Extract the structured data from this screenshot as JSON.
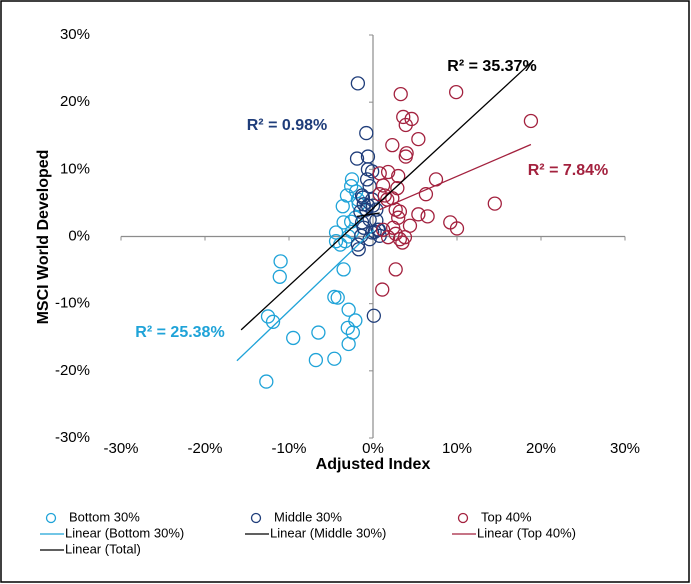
{
  "chart_data": {
    "type": "scatter",
    "x_label": "Adjusted Index",
    "y_label": "MSCI World Developed",
    "xlim": [
      -30,
      30
    ],
    "ylim": [
      -30,
      30
    ],
    "xticks": [
      {
        "value": -30,
        "label": "-30%"
      },
      {
        "value": -20,
        "label": "-20%"
      },
      {
        "value": -10,
        "label": "-10%"
      },
      {
        "value": 0,
        "label": "0%"
      },
      {
        "value": 10,
        "label": "10%"
      },
      {
        "value": 20,
        "label": "20%"
      },
      {
        "value": 30,
        "label": "30%"
      }
    ],
    "yticks": [
      {
        "value": -30,
        "label": "-30%"
      },
      {
        "value": -20,
        "label": "-20%"
      },
      {
        "value": -10,
        "label": "-10%"
      },
      {
        "value": 0,
        "label": "0%"
      },
      {
        "value": 10,
        "label": "10%"
      },
      {
        "value": 20,
        "label": "20%"
      },
      {
        "value": 30,
        "label": "30%"
      }
    ],
    "grid": false,
    "series": [
      {
        "name": "Bottom 30%",
        "color": "#1fa3d8",
        "mode": "markers",
        "x": [
          -12.7,
          -11.0,
          -11.1,
          -12.5,
          -11.9,
          -9.5,
          -6.8,
          -4.6,
          -6.5,
          -2.9,
          -2.4,
          -3.0,
          -2.1,
          -2.9,
          -4.2,
          -4.6,
          -3.5,
          -4.4,
          -4.4,
          -3.9,
          -3.3,
          -2.9,
          -2.5,
          -3.5,
          -3.6,
          -3.1,
          -2.6,
          -2.5,
          -2.0,
          -1.8,
          -1.7,
          -2.1,
          -2.6
        ],
        "values": [
          -21.6,
          -3.7,
          -6.0,
          -11.9,
          -12.7,
          -15.1,
          -18.4,
          -18.2,
          -14.3,
          -16.0,
          -14.3,
          -13.6,
          -12.5,
          -10.9,
          -9.1,
          -9.0,
          -4.9,
          0.6,
          -0.7,
          -1.2,
          -0.7,
          0.0,
          0.7,
          2.1,
          4.5,
          6.1,
          7.5,
          8.5,
          6.7,
          5.5,
          4.8,
          2.8,
          2.2
        ]
      },
      {
        "name": "Middle 30%",
        "color": "#1f3d7a",
        "mode": "markers",
        "x": [
          -1.8,
          -0.8,
          -1.9,
          -0.6,
          -0.6,
          -0.7,
          -0.1,
          -0.4,
          -0.1,
          -1.1,
          -0.8,
          -0.4,
          -1.5,
          -1.3,
          -1.1,
          -0.1,
          0.2,
          0.6,
          -1.8,
          -1.7,
          -0.6,
          0.0,
          -1.2,
          0.4,
          0.4,
          0.7,
          0.8,
          0.1,
          -0.4,
          -1.4,
          -1.3
        ],
        "values": [
          22.8,
          15.4,
          11.6,
          11.9,
          10.0,
          8.5,
          9.7,
          7.5,
          5.5,
          4.8,
          4.0,
          2.5,
          3.7,
          2.1,
          1.3,
          0.6,
          0.7,
          1.0,
          -1.2,
          -1.9,
          4.6,
          4.6,
          5.8,
          4.0,
          2.4,
          1.0,
          0.1,
          -11.8,
          -0.4,
          0.1,
          6.1
        ]
      },
      {
        "name": "Top 40%",
        "color": "#a3213e",
        "mode": "markers",
        "x": [
          3.3,
          9.9,
          3.6,
          4.6,
          3.9,
          5.4,
          3.9,
          4.0,
          2.3,
          3.0,
          0.8,
          1.2,
          1.4,
          1.7,
          2.3,
          2.9,
          1.8,
          2.7,
          3.2,
          1.2,
          1.8,
          2.4,
          3.0,
          2.7,
          3.2,
          3.5,
          3.8,
          4.4,
          5.4,
          6.3,
          6.5,
          7.5,
          9.2,
          10.0,
          14.5,
          18.8,
          1.1,
          2.7,
          0.8
        ],
        "values": [
          21.2,
          21.5,
          17.8,
          17.5,
          16.6,
          14.5,
          11.9,
          12.4,
          13.6,
          9.0,
          9.4,
          7.6,
          6.1,
          5.5,
          5.7,
          7.2,
          9.6,
          4.0,
          3.7,
          1.0,
          -0.1,
          1.3,
          2.8,
          0.4,
          -0.4,
          -0.9,
          -0.1,
          1.6,
          3.3,
          6.3,
          3.0,
          8.5,
          2.1,
          1.2,
          4.9,
          17.2,
          -7.9,
          -4.9,
          6.3
        ]
      },
      {
        "name": "Linear (Bottom 30%)",
        "color": "#1fa3d8",
        "mode": "line",
        "x": [
          -16.2,
          0.1
        ],
        "values": [
          -18.5,
          1.0
        ]
      },
      {
        "name": "Linear (Middle 30%)",
        "color": "#000000",
        "mode": "line",
        "x": [
          -1.9,
          0.8
        ],
        "values": [
          3.0,
          3.5
        ]
      },
      {
        "name": "Linear (Top 40%)",
        "color": "#a3213e",
        "mode": "line",
        "x": [
          0.8,
          18.8
        ],
        "values": [
          4.0,
          13.7
        ]
      },
      {
        "name": "Linear (Total)",
        "color": "#000000",
        "mode": "line",
        "x": [
          -15.7,
          19.0
        ],
        "values": [
          -13.9,
          26.1
        ]
      }
    ],
    "annotations": [
      {
        "text": "R² = 35.37%",
        "color": "#000000"
      },
      {
        "text": "R² = 0.98%",
        "color": "#1f3d7a"
      },
      {
        "text": "R² = 7.84%",
        "color": "#a3213e"
      },
      {
        "text": "R² = 25.38%",
        "color": "#1fa3d8"
      }
    ]
  }
}
